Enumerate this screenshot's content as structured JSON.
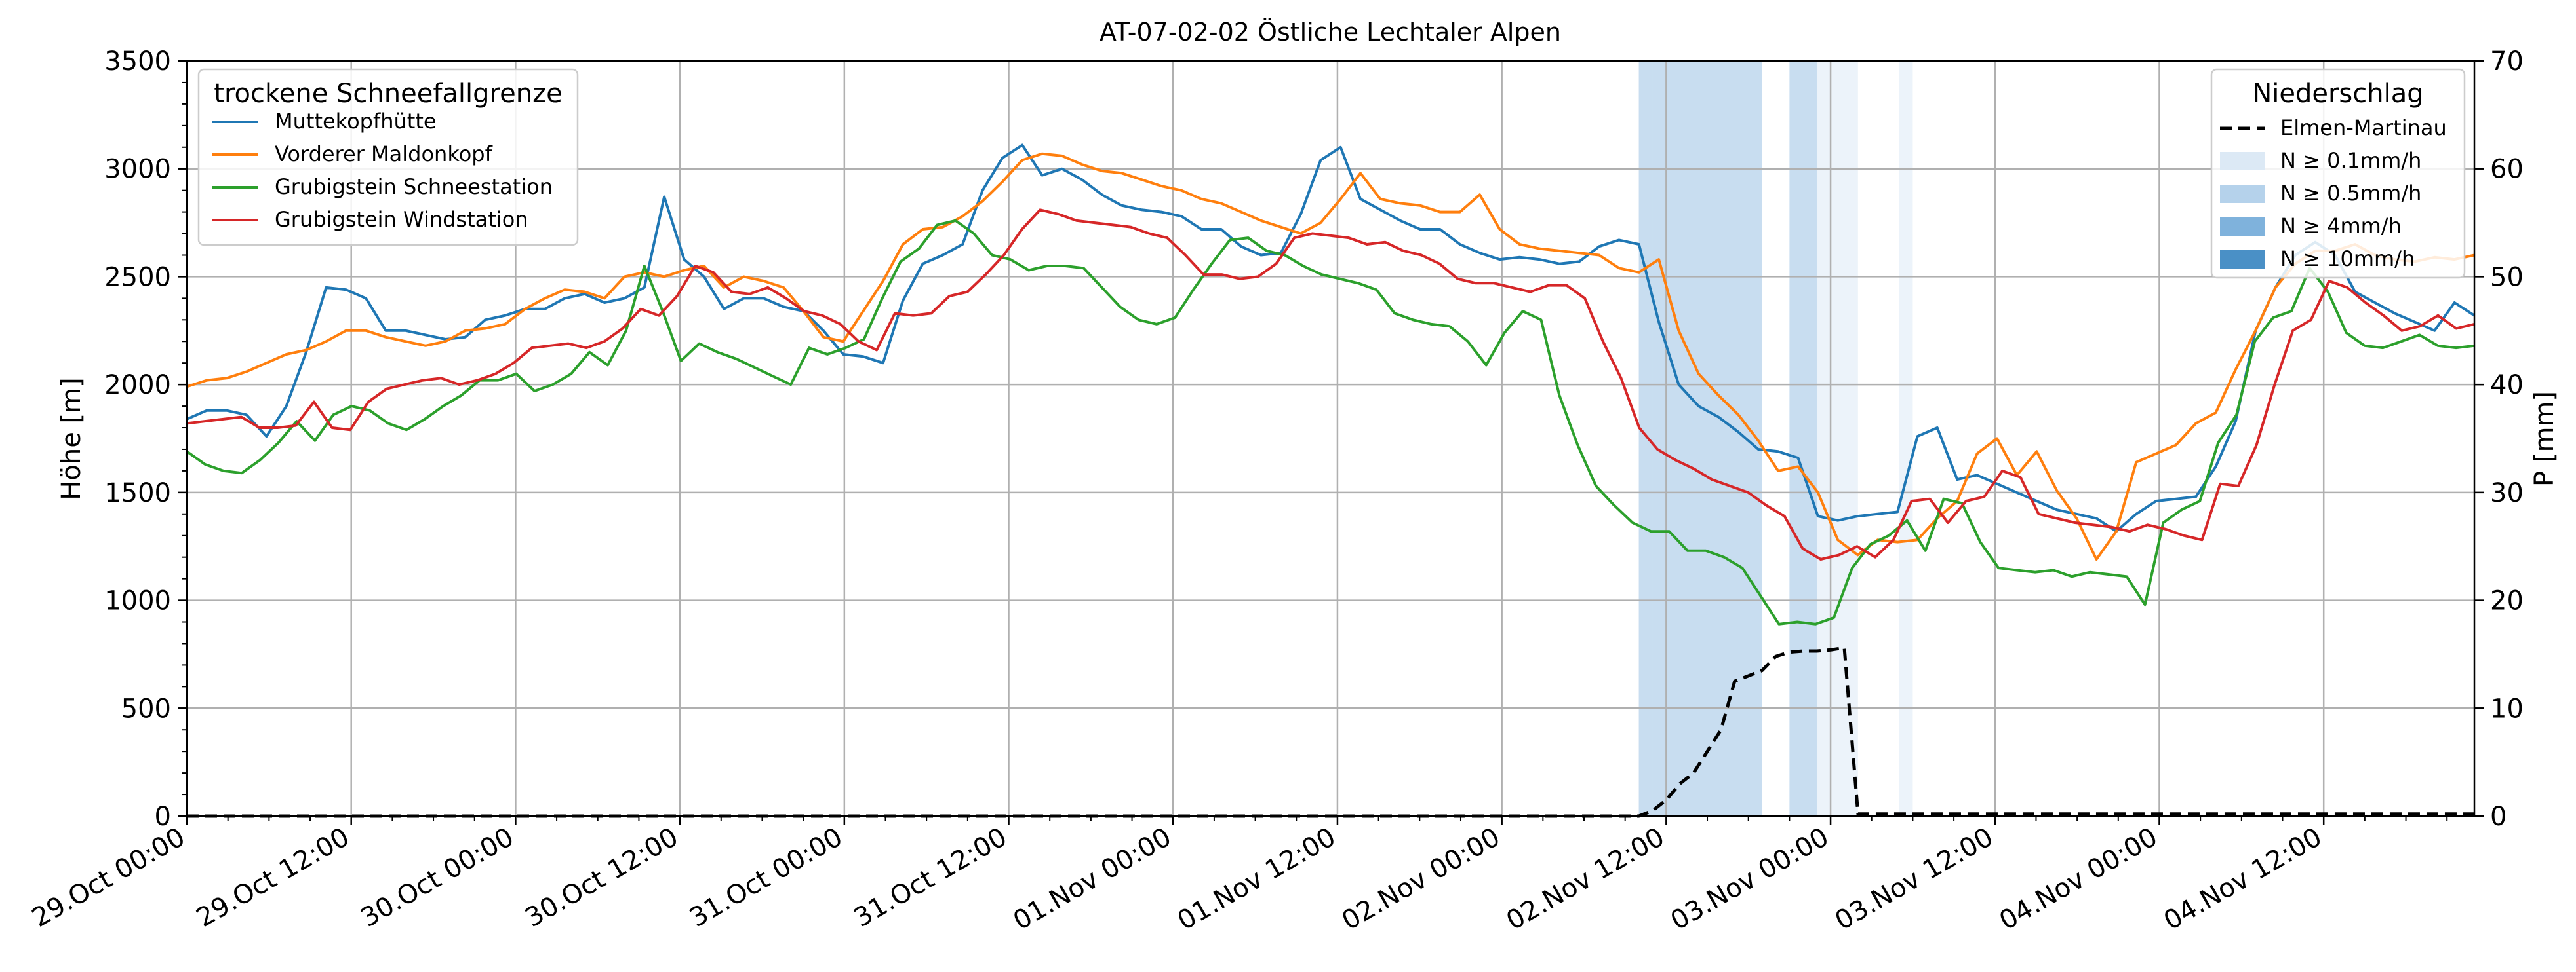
{
  "chart_data": {
    "type": "line",
    "title": "AT-07-02-02 Östliche Lechtaler Alpen",
    "xlabel": "",
    "ylabel": "Höhe [m]",
    "ylabel_right": "P [mm]",
    "ylim": [
      0,
      3500
    ],
    "ylim_right": [
      0,
      70
    ],
    "xlim": [
      "29.Oct 00:00",
      "04.Nov 23:00"
    ],
    "grid": true,
    "x_tick_labels": [
      "29.Oct 00:00",
      "29.Oct 12:00",
      "30.Oct 00:00",
      "30.Oct 12:00",
      "31.Oct 00:00",
      "31.Oct 12:00",
      "01.Nov 00:00",
      "01.Nov 12:00",
      "02.Nov 00:00",
      "02.Nov 12:00",
      "03.Nov 00:00",
      "03.Nov 12:00",
      "04.Nov 00:00",
      "04.Nov 12:00"
    ],
    "y_tick_labels": [
      "0",
      "500",
      "1000",
      "1500",
      "2000",
      "2500",
      "3000",
      "3500"
    ],
    "y_tick_labels_right": [
      "0",
      "10",
      "20",
      "30",
      "40",
      "50",
      "60",
      "70"
    ],
    "legend_left": {
      "title": "trockene Schneefallgrenze",
      "position": "top-left"
    },
    "legend_right": {
      "title": "Niederschlag",
      "position": "top-right",
      "entries": [
        {
          "label": "Elmen-Martinau",
          "style": "dashed-black"
        },
        {
          "label": "N ≥ 0.1mm/h",
          "color": "#dce9f5"
        },
        {
          "label": "N ≥ 0.5mm/h",
          "color": "#b5d2eb"
        },
        {
          "label": "N ≥ 4mm/h",
          "color": "#7fb2dc"
        },
        {
          "label": "N ≥ 10mm/h",
          "color": "#4a90c6"
        }
      ]
    },
    "x_hour_step": 2,
    "series": [
      {
        "name": "Muttekopfhütte",
        "color": "#1f77b4",
        "values": [
          1840,
          1880,
          1880,
          1860,
          1760,
          1900,
          2150,
          2450,
          2440,
          2400,
          2250,
          2250,
          2230,
          2210,
          2220,
          2300,
          2320,
          2350,
          2350,
          2400,
          2420,
          2380,
          2400,
          2450,
          2870,
          2580,
          2500,
          2350,
          2400,
          2400,
          2360,
          2340,
          2250,
          2140,
          2130,
          2100,
          2390,
          2560,
          2600,
          2650,
          2900,
          3050,
          3110,
          2970,
          3000,
          2950,
          2880,
          2830,
          2810,
          2800,
          2780,
          2720,
          2720,
          2640,
          2600,
          2610,
          2790,
          3040,
          3100,
          2860,
          2810,
          2760,
          2720,
          2720,
          2650,
          2610,
          2580,
          2590,
          2580,
          2560,
          2570,
          2640,
          2670,
          2650,
          2290,
          2000,
          1900,
          1850,
          1780,
          1700,
          1690,
          1660,
          1390,
          1370,
          1390,
          1400,
          1410,
          1760,
          1800,
          1560,
          1580,
          1540,
          1500,
          1460,
          1420,
          1400,
          1380,
          1320,
          1400,
          1460,
          1470,
          1480,
          1620,
          1830,
          2250,
          2450,
          2600,
          2660,
          2600,
          2430,
          2380,
          2330,
          2290,
          2250,
          2380,
          2320
        ],
        "values_note_start": "29.Oct 00:00"
      },
      {
        "name": "Vorderer Maldonkopf",
        "color": "#ff7f0e",
        "values": [
          1990,
          2020,
          2030,
          2060,
          2100,
          2140,
          2160,
          2200,
          2250,
          2250,
          2220,
          2200,
          2180,
          2200,
          2250,
          2260,
          2280,
          2350,
          2400,
          2440,
          2430,
          2400,
          2500,
          2520,
          2500,
          2530,
          2550,
          2450,
          2500,
          2480,
          2450,
          2340,
          2220,
          2200,
          2340,
          2480,
          2650,
          2720,
          2730,
          2780,
          2850,
          2940,
          3040,
          3070,
          3060,
          3020,
          2990,
          2980,
          2950,
          2920,
          2900,
          2860,
          2840,
          2800,
          2760,
          2730,
          2700,
          2750,
          2860,
          2980,
          2860,
          2840,
          2830,
          2800,
          2800,
          2880,
          2720,
          2650,
          2630,
          2620,
          2610,
          2600,
          2540,
          2520,
          2580,
          2250,
          2050,
          1950,
          1860,
          1740,
          1600,
          1620,
          1500,
          1280,
          1210,
          1280,
          1270,
          1280,
          1380,
          1460,
          1680,
          1750,
          1580,
          1690,
          1510,
          1380,
          1190,
          1320,
          1640,
          1680,
          1720,
          1820,
          1870,
          2070,
          2250,
          2450,
          2560,
          2620,
          2620,
          2650,
          2600,
          2580,
          2570,
          2590,
          2580,
          2600
        ],
        "values_note_start": "29.Oct 00:00"
      },
      {
        "name": "Grubigstein Schneestation",
        "color": "#2ca02c",
        "values": [
          1690,
          1630,
          1600,
          1590,
          1650,
          1730,
          1830,
          1740,
          1860,
          1900,
          1880,
          1820,
          1790,
          1840,
          1900,
          1950,
          2020,
          2020,
          2050,
          1970,
          2000,
          2050,
          2150,
          2090,
          2250,
          2550,
          2340,
          2110,
          2190,
          2150,
          2120,
          2080,
          2040,
          2000,
          2170,
          2140,
          2170,
          2210,
          2400,
          2570,
          2630,
          2740,
          2760,
          2700,
          2600,
          2580,
          2530,
          2550,
          2550,
          2540,
          2450,
          2360,
          2300,
          2280,
          2310,
          2440,
          2560,
          2670,
          2680,
          2620,
          2600,
          2550,
          2510,
          2490,
          2470,
          2440,
          2330,
          2300,
          2280,
          2270,
          2200,
          2090,
          2240,
          2340,
          2300,
          1950,
          1720,
          1530,
          1440,
          1360,
          1320,
          1320,
          1230,
          1230,
          1200,
          1150,
          1020,
          890,
          900,
          890,
          920,
          1150,
          1260,
          1300,
          1370,
          1230,
          1470,
          1450,
          1270,
          1150,
          1140,
          1130,
          1140,
          1110,
          1130,
          1120,
          1110,
          980,
          1360,
          1420,
          1460,
          1730,
          1860,
          2200,
          2310,
          2340,
          2540,
          2430,
          2240,
          2180,
          2170,
          2200,
          2230,
          2180,
          2170,
          2180
        ],
        "values_note_start": "29.Oct 00:00"
      },
      {
        "name": "Grubigstein Windstation",
        "color": "#d62728",
        "values": [
          1820,
          1830,
          1840,
          1850,
          1800,
          1800,
          1810,
          1920,
          1800,
          1790,
          1920,
          1980,
          2000,
          2020,
          2030,
          2000,
          2020,
          2050,
          2100,
          2170,
          2180,
          2190,
          2170,
          2200,
          2260,
          2350,
          2320,
          2410,
          2550,
          2520,
          2430,
          2420,
          2450,
          2400,
          2340,
          2320,
          2280,
          2200,
          2160,
          2330,
          2320,
          2330,
          2410,
          2430,
          2510,
          2600,
          2720,
          2810,
          2790,
          2760,
          2750,
          2740,
          2730,
          2700,
          2680,
          2600,
          2510,
          2510,
          2490,
          2500,
          2560,
          2680,
          2700,
          2690,
          2680,
          2650,
          2660,
          2620,
          2600,
          2560,
          2490,
          2470,
          2470,
          2450,
          2430,
          2460,
          2460,
          2400,
          2200,
          2030,
          1800,
          1700,
          1650,
          1610,
          1560,
          1530,
          1500,
          1440,
          1390,
          1240,
          1190,
          1210,
          1250,
          1200,
          1280,
          1460,
          1470,
          1360,
          1460,
          1480,
          1600,
          1570,
          1400,
          1380,
          1360,
          1350,
          1340,
          1320,
          1350,
          1330,
          1300,
          1280,
          1540,
          1530,
          1720,
          2000,
          2250,
          2300,
          2480,
          2450,
          2380,
          2320,
          2250,
          2270,
          2320,
          2260,
          2280
        ],
        "values_note_start": "29.Oct 00:00"
      },
      {
        "name": "Elmen-Martinau",
        "axis": "right",
        "color": "#000000",
        "style": "dashed",
        "x": [
          "02.Nov 10:00",
          "02.Nov 11:00",
          "02.Nov 12:00",
          "02.Nov 13:00",
          "02.Nov 14:00",
          "02.Nov 15:00",
          "02.Nov 16:00",
          "02.Nov 17:00",
          "02.Nov 18:00",
          "02.Nov 19:00",
          "02.Nov 20:00",
          "02.Nov 21:00",
          "02.Nov 22:00",
          "02.Nov 23:00",
          "03.Nov 00:00",
          "03.Nov 01:00",
          "03.Nov 02:00",
          "03.Nov 03:00",
          "03.Nov 04:00",
          "03.Nov 05:00",
          "03.Nov 06:00",
          "03.Nov 07:00"
        ],
        "values": [
          0,
          0.5,
          1.5,
          3,
          4,
          6,
          8,
          12.5,
          13,
          13.5,
          14.8,
          15.2,
          15.3,
          15.3,
          15.4,
          15.6,
          0.2,
          0.2,
          0.2,
          0.2,
          0.2,
          0.2
        ]
      }
    ],
    "precip_bands": [
      {
        "start": "02.Nov 10:00",
        "end": "02.Nov 11:00",
        "level": "N ≥ 0.5mm/h"
      },
      {
        "start": "02.Nov 11:00",
        "end": "02.Nov 19:00",
        "level": "N ≥ 0.5mm/h"
      },
      {
        "start": "02.Nov 21:00",
        "end": "02.Nov 23:00",
        "level": "N ≥ 0.5mm/h"
      },
      {
        "start": "02.Nov 23:00",
        "end": "03.Nov 02:00",
        "level": "N ≥ 0.1mm/h"
      },
      {
        "start": "03.Nov 05:00",
        "end": "03.Nov 06:00",
        "level": "N ≥ 0.1mm/h"
      }
    ]
  }
}
